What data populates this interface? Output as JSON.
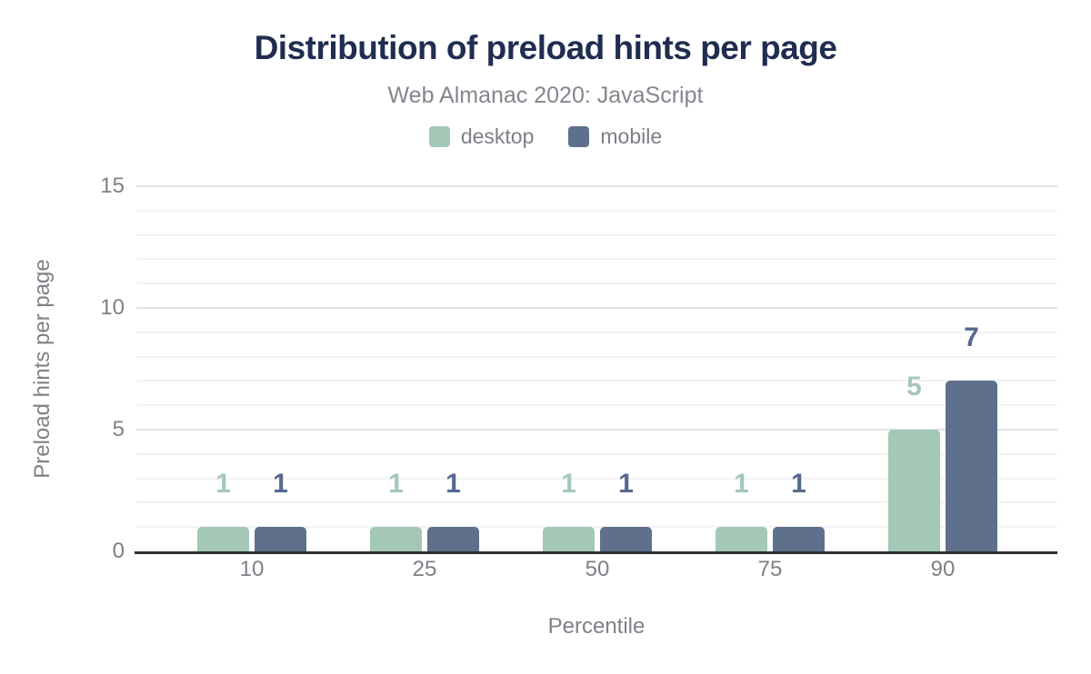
{
  "chart_data": {
    "type": "bar",
    "title": "Distribution of preload hints per page",
    "subtitle": "Web Almanac 2020: JavaScript",
    "xlabel": "Percentile",
    "ylabel": "Preload hints per page",
    "categories": [
      "10",
      "25",
      "50",
      "75",
      "90"
    ],
    "series": [
      {
        "name": "desktop",
        "values": [
          1,
          1,
          1,
          1,
          5
        ],
        "color": "#a4c8b6",
        "label_color": "#a4c8b6"
      },
      {
        "name": "mobile",
        "values": [
          1,
          1,
          1,
          1,
          7
        ],
        "color": "#5f708c",
        "label_color": "#56698e"
      }
    ],
    "ylim": [
      0,
      15
    ],
    "yticks": [
      0,
      5,
      10,
      15
    ],
    "grid": "horizontal, minor line every 1 unit, major line every 5 units",
    "legend_position": "top",
    "colors": {
      "title": "#1f2d50",
      "muted_text": "#7c8187",
      "axis_line": "#2e3033",
      "grid_minor": "#f3f3f4",
      "grid_major": "#e0e1e4",
      "background": "#ffffff"
    }
  }
}
